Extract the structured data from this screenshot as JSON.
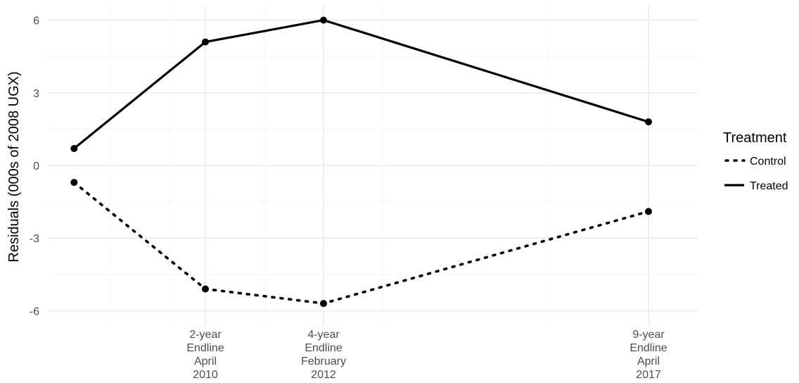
{
  "chart_data": {
    "type": "line",
    "title": "",
    "xlabel": "",
    "ylabel": "Residuals (000s of 2008 UGX)",
    "ylim": [
      -6.6,
      6.6
    ],
    "xlim": [
      2007.6,
      2017.5
    ],
    "y_ticks": [
      -6,
      -3,
      0,
      3,
      6
    ],
    "y_tick_labels": [
      "-6",
      "-3",
      "0",
      "3",
      "6"
    ],
    "x_ticks": [
      {
        "x": 2010.0,
        "lines": [
          "2-year",
          "Endline",
          "April",
          "2010"
        ]
      },
      {
        "x": 2011.8,
        "lines": [
          "4-year",
          "Endline",
          "February",
          "2012"
        ]
      },
      {
        "x": 2016.75,
        "lines": [
          "9-year",
          "Endline",
          "April",
          "2017"
        ]
      }
    ],
    "x_minor_grid": [
      2008.55,
      2009.45,
      2010.9,
      2012.7,
      2015.2
    ],
    "grid": true,
    "legend": {
      "title": "Treatment",
      "position": "right"
    },
    "series": [
      {
        "name": "Control",
        "linetype": "dotted",
        "color": "#000000",
        "x": [
          2008.0,
          2010.0,
          2011.8,
          2016.75
        ],
        "y": [
          -0.7,
          -5.1,
          -5.7,
          -1.9
        ]
      },
      {
        "name": "Treated",
        "linetype": "solid",
        "color": "#000000",
        "x": [
          2008.0,
          2010.0,
          2011.8,
          2016.75
        ],
        "y": [
          0.7,
          5.1,
          6.0,
          1.8
        ]
      }
    ],
    "colors": {
      "grid_major": "#ebebeb",
      "grid_minor": "#f5f5f5",
      "tick_text": "#4d4d4d"
    }
  }
}
